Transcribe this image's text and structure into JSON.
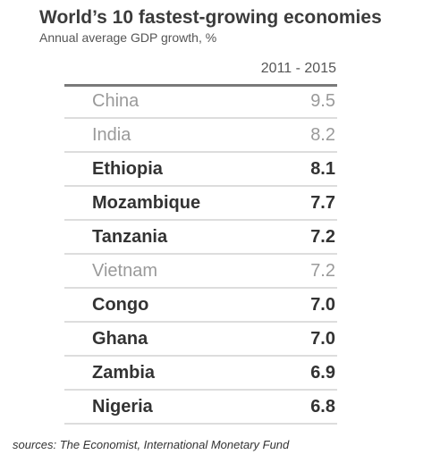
{
  "chart_data": {
    "type": "table",
    "title": "World’s 10 fastest-growing economies",
    "subtitle": "Annual average GDP growth, %",
    "column_header": "2011 - 2015",
    "rows": [
      {
        "country": "China",
        "value": "9.5",
        "highlight": false
      },
      {
        "country": "India",
        "value": "8.2",
        "highlight": false
      },
      {
        "country": "Ethiopia",
        "value": "8.1",
        "highlight": true
      },
      {
        "country": "Mozambique",
        "value": "7.7",
        "highlight": true
      },
      {
        "country": "Tanzania",
        "value": "7.2",
        "highlight": true
      },
      {
        "country": "Vietnam",
        "value": "7.2",
        "highlight": false
      },
      {
        "country": "Congo",
        "value": "7.0",
        "highlight": true
      },
      {
        "country": "Ghana",
        "value": "7.0",
        "highlight": true
      },
      {
        "country": "Zambia",
        "value": "6.9",
        "highlight": true
      },
      {
        "country": "Nigeria",
        "value": "6.8",
        "highlight": true
      }
    ],
    "source": "sources: The Economist, International Monetary Fund"
  },
  "colors": {
    "highlight_text": "#333333",
    "muted_text": "#9a9a9a",
    "row_divider": "#dddddd",
    "header_rule": "#7a7a7a"
  }
}
